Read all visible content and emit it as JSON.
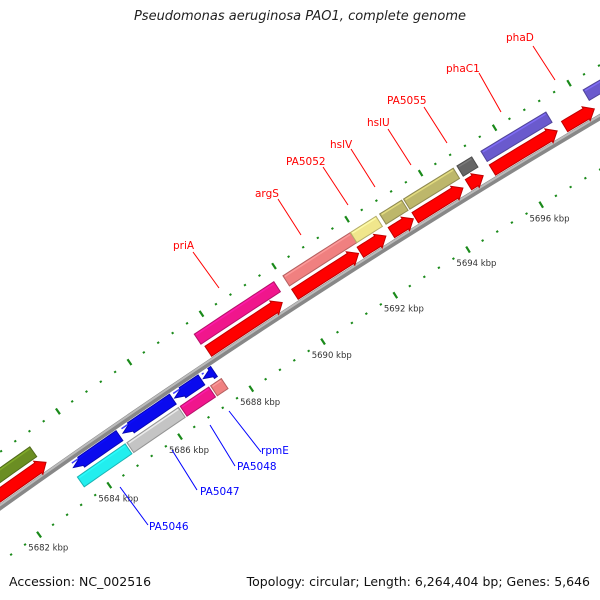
{
  "title": "Pseudomonas aeruginosa PAO1, complete genome",
  "footer": {
    "accession": "Accession: NC_002516",
    "summary": "Topology: circular; Length: 6,264,404 bp; Genes: 5,646"
  },
  "chart_data": {
    "type": "genome-map",
    "units": "kbp",
    "visible_range": [
      5680,
      5699
    ],
    "tick_major_kbp": 2,
    "tick_minor_kbp": 0.4,
    "kbp_labels": [
      "5682 kbp",
      "5684 kbp",
      "5686 kbp",
      "5688 kbp",
      "5690 kbp",
      "5692 kbp",
      "5694 kbp",
      "5696 kbp"
    ],
    "kbp_label_values": [
      5682,
      5684,
      5686,
      5688,
      5690,
      5692,
      5694,
      5696
    ],
    "features": [
      {
        "name": "gene-left",
        "strand": "+",
        "ring": "outer",
        "start": 5679,
        "end": 5683.0,
        "color": "#6b8e23",
        "arrow": false
      },
      {
        "name": "cds-left",
        "strand": "+",
        "ring": "inner",
        "start": 5679,
        "end": 5683.1,
        "color": "#ff0000",
        "arrow": true
      },
      {
        "name": "priA",
        "strand": "+",
        "ring": "outer",
        "start": 5687.6,
        "end": 5689.8,
        "color": "#f0168c",
        "arrow": false
      },
      {
        "name": "priA-cds",
        "strand": "+",
        "ring": "inner",
        "start": 5687.65,
        "end": 5689.7,
        "color": "#ff0000",
        "arrow": true
      },
      {
        "name": "argS",
        "strand": "+",
        "ring": "outer",
        "start": 5690.05,
        "end": 5691.9,
        "color": "#f08080",
        "arrow": false
      },
      {
        "name": "argS-cds",
        "strand": "+",
        "ring": "inner",
        "start": 5690.05,
        "end": 5691.8,
        "color": "#ff0000",
        "arrow": true
      },
      {
        "name": "PA5052",
        "strand": "+",
        "ring": "outer",
        "start": 5691.9,
        "end": 5692.6,
        "color": "#f0e68c",
        "arrow": false
      },
      {
        "name": "PA5052-cds",
        "strand": "+",
        "ring": "inner",
        "start": 5691.85,
        "end": 5692.55,
        "color": "#ff0000",
        "arrow": true
      },
      {
        "name": "hslV",
        "strand": "+",
        "ring": "outer",
        "start": 5692.7,
        "end": 5693.3,
        "color": "#bdb76b",
        "arrow": false
      },
      {
        "name": "hslV-cds",
        "strand": "+",
        "ring": "inner",
        "start": 5692.7,
        "end": 5693.3,
        "color": "#ff0000",
        "arrow": true
      },
      {
        "name": "hslU",
        "strand": "+",
        "ring": "outer",
        "start": 5693.35,
        "end": 5694.7,
        "color": "#bdb76b",
        "arrow": false
      },
      {
        "name": "hslU-cds",
        "strand": "+",
        "ring": "inner",
        "start": 5693.35,
        "end": 5694.65,
        "color": "#ff0000",
        "arrow": true
      },
      {
        "name": "PA5055",
        "strand": "+",
        "ring": "outer",
        "start": 5694.8,
        "end": 5695.2,
        "color": "#666666",
        "arrow": false
      },
      {
        "name": "PA5055-cds",
        "strand": "+",
        "ring": "inner",
        "start": 5694.8,
        "end": 5695.2,
        "color": "#ff0000",
        "arrow": true
      },
      {
        "name": "phaC1",
        "strand": "+",
        "ring": "outer",
        "start": 5695.45,
        "end": 5697.2,
        "color": "#6a5acd",
        "arrow": false
      },
      {
        "name": "phaC1-cds",
        "strand": "+",
        "ring": "inner",
        "start": 5695.45,
        "end": 5697.2,
        "color": "#ff0000",
        "arrow": true
      },
      {
        "name": "phaD",
        "strand": "+",
        "ring": "outer",
        "start": 5698.2,
        "end": 5700,
        "color": "#6a5acd",
        "arrow": false
      },
      {
        "name": "phaD-cds",
        "strand": "+",
        "ring": "inner",
        "start": 5697.4,
        "end": 5698.2,
        "color": "#ff0000",
        "arrow": true
      },
      {
        "name": "PA5046-cds",
        "strand": "-",
        "ring": "inner",
        "start": 5683.55,
        "end": 5684.85,
        "color": "#0a0aee",
        "arrow": true
      },
      {
        "name": "PA5047-cds",
        "strand": "-",
        "ring": "inner",
        "start": 5684.95,
        "end": 5686.35,
        "color": "#0a0aee",
        "arrow": true
      },
      {
        "name": "PA5048-cds",
        "strand": "-",
        "ring": "inner",
        "start": 5686.4,
        "end": 5687.15,
        "color": "#0a0aee",
        "arrow": true
      },
      {
        "name": "rpmE-cds",
        "strand": "-",
        "ring": "inner",
        "start": 5687.2,
        "end": 5687.5,
        "color": "#0a0aee",
        "arrow": true
      },
      {
        "name": "PA5046",
        "strand": "-",
        "ring": "outer",
        "start": 5683.5,
        "end": 5684.85,
        "color": "#22eeee",
        "arrow": false
      },
      {
        "name": "PA5047",
        "strand": "-",
        "ring": "outer",
        "start": 5684.9,
        "end": 5686.35,
        "color": "#c4c4c4",
        "arrow": false
      },
      {
        "name": "PA5048",
        "strand": "-",
        "ring": "outer",
        "start": 5686.4,
        "end": 5687.2,
        "color": "#f0168c",
        "arrow": false
      },
      {
        "name": "rpmE",
        "strand": "-",
        "ring": "outer",
        "start": 5687.25,
        "end": 5687.55,
        "color": "#f08080",
        "arrow": false
      }
    ],
    "labels": [
      {
        "text": "priA",
        "color": "#ff0000"
      },
      {
        "text": "argS",
        "color": "#ff0000"
      },
      {
        "text": "PA5052",
        "color": "#ff0000"
      },
      {
        "text": "hslV",
        "color": "#ff0000"
      },
      {
        "text": "hslU",
        "color": "#ff0000"
      },
      {
        "text": "PA5055",
        "color": "#ff0000"
      },
      {
        "text": "phaC1",
        "color": "#ff0000"
      },
      {
        "text": "phaD",
        "color": "#ff0000"
      },
      {
        "text": "rpmE",
        "color": "#0000ff"
      },
      {
        "text": "PA5048",
        "color": "#0000ff"
      },
      {
        "text": "PA5047",
        "color": "#0000ff"
      },
      {
        "text": "PA5046",
        "color": "#0000ff"
      }
    ],
    "backbone_color": "#888888",
    "tick_color": "#1a8a1a"
  }
}
